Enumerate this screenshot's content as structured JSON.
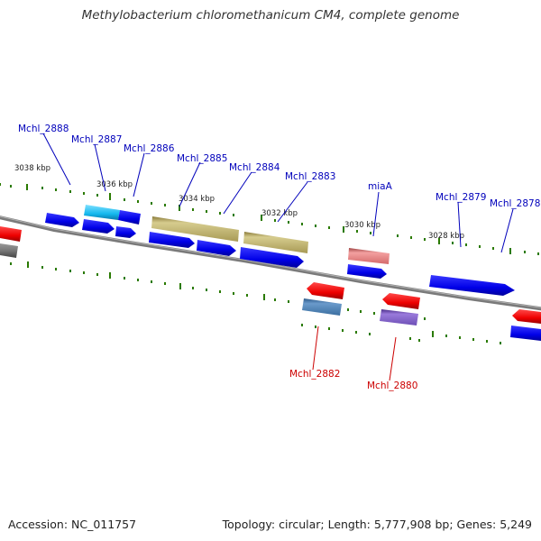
{
  "title": "Methylobacterium chloromethanicum CM4, complete genome",
  "footer": {
    "accession": "Accession: NC_011757",
    "summary": "Topology: circular; Length: 5,777,908 bp; Genes: 5,249"
  },
  "colors": {
    "forward": "#0000ee",
    "reverse": "#ee0000",
    "backbone": "#808080",
    "ticks": "#2a7a00",
    "label_forward": "#0000bb",
    "label_reverse": "#cc0000"
  },
  "ticks": [
    {
      "label": "3038 kbp"
    },
    {
      "label": "3036 kbp"
    },
    {
      "label": "3034 kbp"
    },
    {
      "label": "3032 kbp"
    },
    {
      "label": "3030 kbp"
    },
    {
      "label": "3028 kbp"
    }
  ],
  "gene_labels_forward": [
    "Mchl_2888",
    "Mchl_2887",
    "Mchl_2886",
    "Mchl_2885",
    "Mchl_2884",
    "Mchl_2883",
    "miaA",
    "Mchl_2879",
    "Mchl_2878"
  ],
  "gene_labels_reverse": [
    "Mchl_2882",
    "Mchl_2880"
  ]
}
